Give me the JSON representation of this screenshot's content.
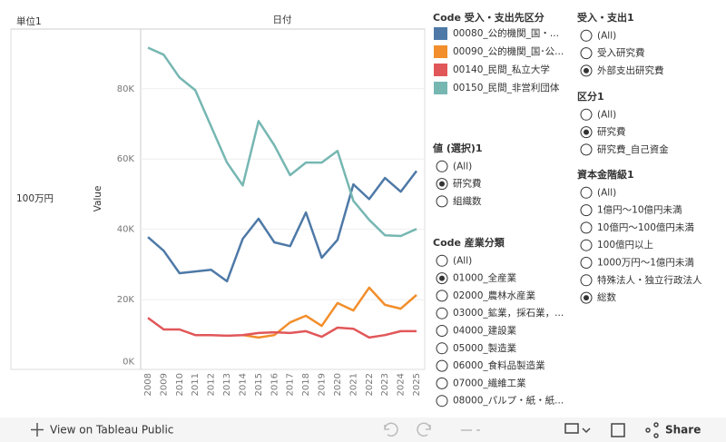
{
  "chart_data": {
    "type": "line",
    "row_header": "単位1",
    "column_header": "日付",
    "row_label": "100万円",
    "y_label": "Value",
    "legend_title": "Code 受入・支出先区分",
    "categories": [
      "2008",
      "2009",
      "2010",
      "2011",
      "2012",
      "2013",
      "2014",
      "2015",
      "2016",
      "2017",
      "2018",
      "2019",
      "2020",
      "2021",
      "2022",
      "2023",
      "2024",
      "2025"
    ],
    "series": [
      {
        "name": "00080_公的機関_国・...",
        "color": "#4e79a7",
        "values": [
          37.8,
          33.9,
          27.5,
          28,
          28.5,
          25.2,
          37.3,
          43,
          36.3,
          35.2,
          44.8,
          31.9,
          37,
          52.8,
          48.6,
          54.6,
          50.7,
          56.6
        ]
      },
      {
        "name": "00090_公的機関_国･公...",
        "color": "#f28e2b",
        "values": [
          null,
          null,
          null,
          null,
          null,
          null,
          9.9,
          9.2,
          9.9,
          13.5,
          15.4,
          12.5,
          19,
          16.9,
          23.4,
          18.5,
          17.4,
          21.3
        ]
      },
      {
        "name": "00140_民間_私立大学",
        "color": "#e15759",
        "values": [
          14.8,
          11.5,
          11.5,
          9.9,
          9.9,
          9.7,
          9.9,
          10.5,
          10.7,
          10.5,
          11,
          9.4,
          12,
          11.7,
          9.2,
          9.9,
          11,
          11
        ]
      },
      {
        "name": "00150_民間_非営利団体",
        "color": "#76b7b2",
        "values": [
          91.7,
          89.7,
          83.2,
          79.6,
          69.3,
          59,
          52.5,
          70.8,
          63.9,
          55.4,
          59,
          59,
          62.3,
          48.1,
          42.7,
          38.3,
          38.1,
          40.1
        ]
      }
    ],
    "ylim": [
      0,
      97
    ],
    "yticks": [
      {
        "value": 0,
        "label": "0K"
      },
      {
        "value": 20,
        "label": "20K"
      },
      {
        "value": 40,
        "label": "40K"
      },
      {
        "value": 60,
        "label": "60K"
      },
      {
        "value": 80,
        "label": "80K"
      }
    ],
    "grid": true
  },
  "filters": [
    {
      "title": "値 (選択)1",
      "options": [
        "(All)",
        "研究費",
        "組織数"
      ],
      "selected": 1
    },
    {
      "title": "Code 産業分類",
      "options": [
        "(All)",
        "01000_全産業",
        "02000_農林水産業",
        "03000_鉱業，採石業，...",
        "04000_建設業",
        "05000_製造業",
        "06000_食料品製造業",
        "07000_繊維工業",
        "08000_パルプ・紙・紙..."
      ],
      "selected": 1
    },
    {
      "title": "受入・支出1",
      "options": [
        "(All)",
        "受入研究費",
        "外部支出研究費"
      ],
      "selected": 2
    },
    {
      "title": "区分1",
      "options": [
        "(All)",
        "研究費",
        "研究費_自己資金"
      ],
      "selected": 1
    },
    {
      "title": "資本金階級1",
      "options": [
        "(All)",
        "1億円～10億円未満",
        "10億円～100億円未満",
        "100億円以上",
        "1000万円～1億円未満",
        "特殊法人・独立行政法人",
        "総数"
      ],
      "selected": 6
    }
  ],
  "toolbar": {
    "view": "View on Tableau Public",
    "share": "Share"
  }
}
